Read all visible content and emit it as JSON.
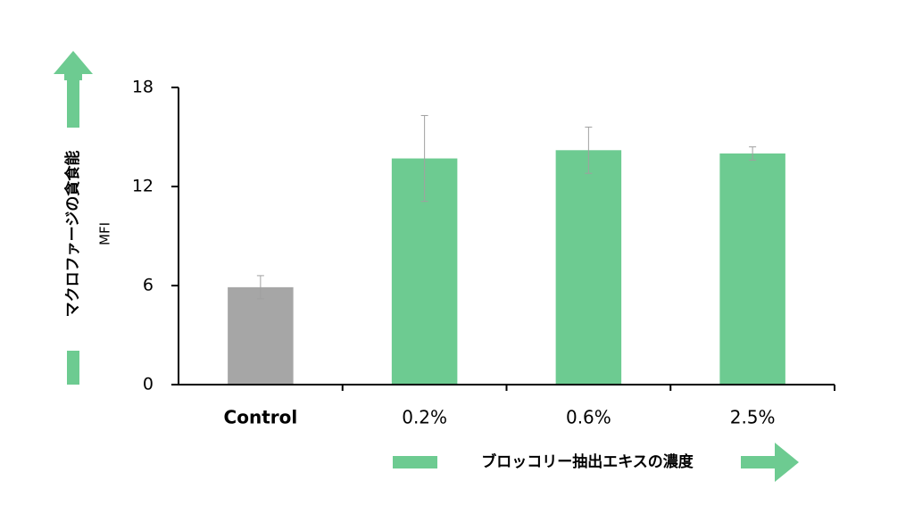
{
  "chart_data": {
    "type": "bar",
    "y_label": "MFI",
    "y_annotation": "マクロファージの貪食能",
    "x_annotation": "ブロッコリー抽出エキスの濃度",
    "categories": [
      "Control",
      "0.2%",
      "0.6%",
      "2.5%"
    ],
    "values": [
      5.9,
      13.7,
      14.2,
      14.0
    ],
    "errors": [
      0.7,
      2.6,
      1.4,
      0.4
    ],
    "colors": [
      "#a6a6a6",
      "#6dcb91",
      "#6dcb91",
      "#6dcb91"
    ],
    "error_color": "#a0a0a0",
    "annotation_color": "#6dcb91",
    "ylim": [
      0,
      18
    ],
    "yticks": [
      0,
      6,
      12,
      18
    ],
    "grid": false
  }
}
